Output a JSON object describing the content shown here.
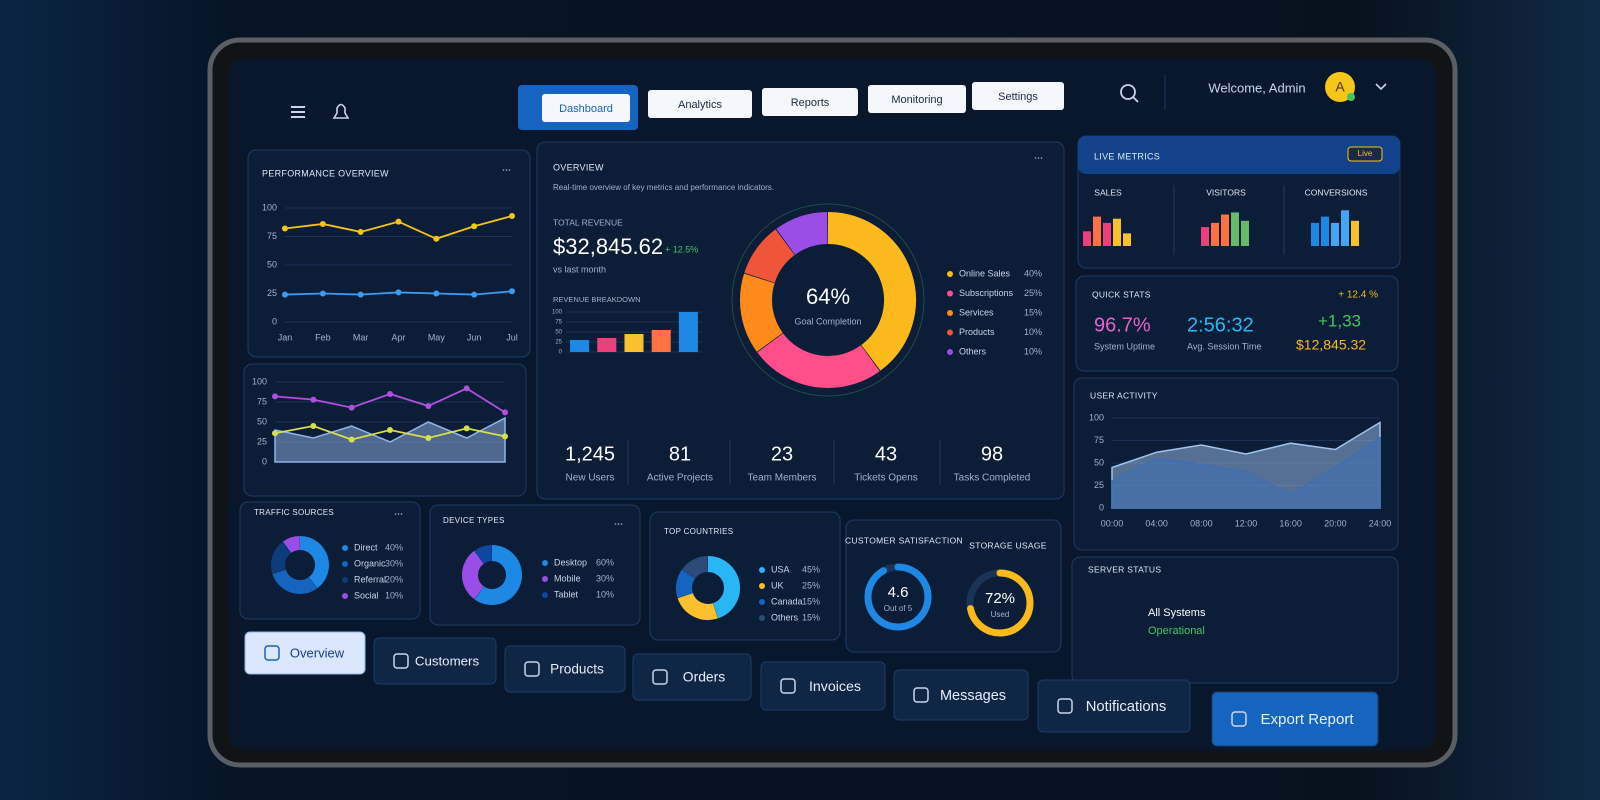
{
  "nav": {
    "tabs": [
      "Dashboard",
      "Analytics",
      "Reports",
      "Monitoring",
      "Settings"
    ],
    "welcome": "Welcome, Admin",
    "avatar": "A"
  },
  "performance": {
    "title": "PERFORMANCE OVERVIEW",
    "categories": [
      "Jan",
      "Feb",
      "Mar",
      "Apr",
      "May",
      "Jun",
      "Jul"
    ],
    "ylim": [
      0,
      100
    ],
    "yticks": [
      0,
      25,
      50,
      75,
      100
    ],
    "series": [
      {
        "color": "#f5c518",
        "values": [
          82,
          86,
          79,
          88,
          73,
          84,
          93
        ]
      },
      {
        "color": "#3b9cf0",
        "values": [
          24,
          25,
          24,
          26,
          25,
          24,
          27
        ]
      }
    ]
  },
  "trend": {
    "ylim": [
      0,
      100
    ],
    "yticks": [
      0,
      25,
      50,
      75,
      100
    ],
    "series": [
      {
        "color": "#8fb4e8",
        "fill": "area",
        "values": [
          40,
          30,
          45,
          25,
          50,
          30,
          55
        ]
      },
      {
        "color": "#b04fe0",
        "values": [
          82,
          78,
          68,
          85,
          70,
          92,
          62
        ]
      },
      {
        "color": "#d7e04a",
        "values": [
          36,
          45,
          28,
          40,
          30,
          42,
          32
        ]
      }
    ]
  },
  "overview": {
    "title": "OVERVIEW",
    "subtitle": "Real-time overview of key metrics and performance indicators.",
    "revenue_title": "TOTAL REVENUE",
    "revenue": "$32,845.62",
    "change": "+ 12.5%",
    "comparison": "vs last month",
    "breakdown": {
      "title": "REVENUE BREAKDOWN",
      "ylim": [
        0,
        100
      ],
      "yticks": [
        0,
        25,
        50,
        75,
        100
      ],
      "values": [
        30,
        35,
        45,
        55,
        100
      ],
      "colors": [
        "#1e88e5",
        "#ec407a",
        "#fbc02d",
        "#ff7043",
        "#1e88e5"
      ]
    },
    "goal": {
      "center": "64%",
      "caption": "Goal Completion",
      "items": [
        {
          "name": "Online Sales",
          "value": 40,
          "label": "40%",
          "color": "#fbb91c"
        },
        {
          "name": "Subscriptions",
          "value": 25,
          "label": "25%",
          "color": "#ff4f8b"
        },
        {
          "name": "Services",
          "value": 15,
          "label": "15%",
          "color": "#ff8a1c"
        },
        {
          "name": "Products",
          "value": 10,
          "label": "10%",
          "color": "#f0553a"
        },
        {
          "name": "Others",
          "value": 10,
          "label": "10%",
          "color": "#9b4de8"
        }
      ]
    },
    "kpis": [
      {
        "value": "1,245",
        "label": "New Users"
      },
      {
        "value": "81",
        "label": "Active Projects"
      },
      {
        "value": "23",
        "label": "Team Members"
      },
      {
        "value": "43",
        "label": "Tickets Opens"
      },
      {
        "value": "98",
        "label": "Tasks Completed"
      }
    ]
  },
  "live": {
    "title": "LIVE METRICS",
    "badge": "Live",
    "groups": [
      {
        "title": "SALES",
        "values": [
          35,
          70,
          55,
          65,
          30
        ],
        "colors": [
          "#ec407a",
          "#ff7043",
          "#ec407a",
          "#fbc02d",
          "#fbc02d"
        ]
      },
      {
        "title": "VISITORS",
        "values": [
          45,
          55,
          75,
          80,
          60
        ],
        "colors": [
          "#ec407a",
          "#ff7043",
          "#ff7043",
          "#66bb6a",
          "#66bb6a"
        ]
      },
      {
        "title": "CONVERSIONS",
        "values": [
          55,
          70,
          55,
          85,
          60
        ],
        "colors": [
          "#1e88e5",
          "#1e88e5",
          "#42a5f5",
          "#42a5f5",
          "#fbc02d"
        ]
      }
    ]
  },
  "quick": {
    "title": "QUICK STATS",
    "change": "+ 12.4 %",
    "stats": [
      {
        "value": "96.7%",
        "label": "System Uptime"
      },
      {
        "value": "2:56:32",
        "label": "Avg. Session Time"
      }
    ],
    "trend": "+1,33",
    "amount": "$12,845.32"
  },
  "activity": {
    "title": "USER ACTIVITY",
    "categories": [
      "00:00",
      "04:00",
      "08:00",
      "12:00",
      "16:00",
      "20:00",
      "24:00"
    ],
    "ylim": [
      0,
      100
    ],
    "yticks": [
      0,
      25,
      50,
      75,
      100
    ],
    "series": [
      {
        "color": "#9ec3f0",
        "fill": "area",
        "values": [
          45,
          62,
          70,
          60,
          72,
          65,
          95
        ]
      },
      {
        "color": "#3d6fb5",
        "fill": "area",
        "values": [
          30,
          55,
          48,
          40,
          15,
          45,
          78
        ]
      }
    ]
  },
  "server": {
    "title": "SERVER STATUS",
    "status": "All Systems",
    "state": "Operational"
  },
  "traffic": {
    "title": "TRAFFIC SOURCES",
    "items": [
      {
        "name": "Direct",
        "value": 40,
        "label": "40%",
        "color": "#1e88e5"
      },
      {
        "name": "Organic",
        "value": 30,
        "label": "30%",
        "color": "#1565c0"
      },
      {
        "name": "Referral",
        "value": 20,
        "label": "20%",
        "color": "#0d3c7a"
      },
      {
        "name": "Social",
        "value": 10,
        "label": "10%",
        "color": "#9b4de8"
      }
    ]
  },
  "devices": {
    "title": "DEVICE TYPES",
    "items": [
      {
        "name": "Desktop",
        "value": 60,
        "label": "60%",
        "color": "#1e88e5"
      },
      {
        "name": "Mobile",
        "value": 30,
        "label": "30%",
        "color": "#9b4de8"
      },
      {
        "name": "Tablet",
        "value": 10,
        "label": "10%",
        "color": "#0d47a1"
      }
    ]
  },
  "countries": {
    "title": "TOP COUNTRIES",
    "items": [
      {
        "name": "USA",
        "value": 45,
        "label": "45%",
        "color": "#29b6f6"
      },
      {
        "name": "UK",
        "value": 25,
        "label": "25%",
        "color": "#fbc02d"
      },
      {
        "name": "Canada",
        "value": 15,
        "label": "15%",
        "color": "#1565c0"
      },
      {
        "name": "Others",
        "value": 15,
        "label": "15%",
        "color": "#2e4a7a"
      }
    ]
  },
  "satisfaction": {
    "title": "CUSTOMER SATISFACTION",
    "value": 4.6,
    "sub": "Out of 5",
    "range": [
      0,
      5
    ],
    "color": "#1e88e5"
  },
  "storage": {
    "title": "STORAGE USAGE",
    "value": 72,
    "label": "72%",
    "sub": "Used",
    "range": [
      0,
      100
    ],
    "color": "#fbb91c"
  },
  "bottom_nav": [
    "Overview",
    "Customers",
    "Products",
    "Orders",
    "Invoices",
    "Messages",
    "Notifications",
    "Export Report"
  ]
}
